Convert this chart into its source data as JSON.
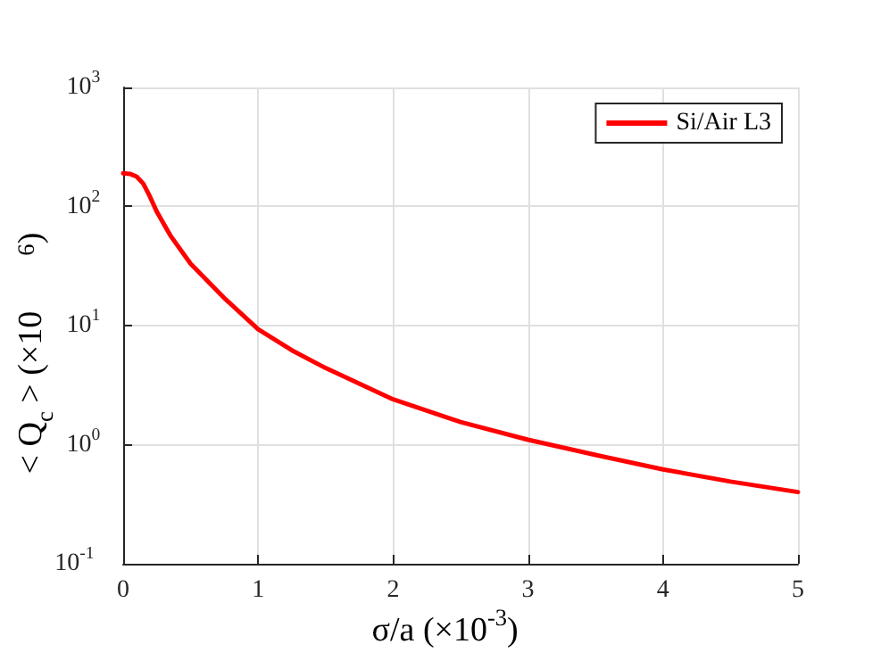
{
  "chart_data": {
    "type": "line",
    "xlabel": "σ/a (×10$^{-3}$)",
    "ylabel": "< Q$_{c}$ > (×10$^{6}$)",
    "x": [
      0,
      0.05,
      0.1,
      0.15,
      0.2,
      0.25,
      0.35,
      0.5,
      0.75,
      1,
      1.25,
      1.5,
      2,
      2.5,
      3,
      3.5,
      4,
      4.5,
      5
    ],
    "series": [
      {
        "name": "Si/Air L3",
        "color": "#ff0000",
        "values": [
          190,
          188,
          178,
          155,
          120,
          90,
          57,
          33,
          17,
          9.3,
          6.2,
          4.4,
          2.4,
          1.55,
          1.1,
          0.82,
          0.62,
          0.49,
          0.4
        ]
      }
    ],
    "xlim": [
      0,
      5
    ],
    "xticks": [
      0,
      1,
      2,
      3,
      4,
      5
    ],
    "ylim": [
      0.1,
      1000
    ],
    "yticks": [
      {
        "value": 0.1,
        "label": "10$^{-1}$"
      },
      {
        "value": 1,
        "label": "10$^{0}$"
      },
      {
        "value": 10,
        "label": "10$^{1}$"
      },
      {
        "value": 100,
        "label": "10$^{2}$"
      },
      {
        "value": 1000,
        "label": "10$^{3}$"
      }
    ],
    "log": "y",
    "grid": true,
    "legend": "top right",
    "marker": "none",
    "line_style": "solid"
  }
}
